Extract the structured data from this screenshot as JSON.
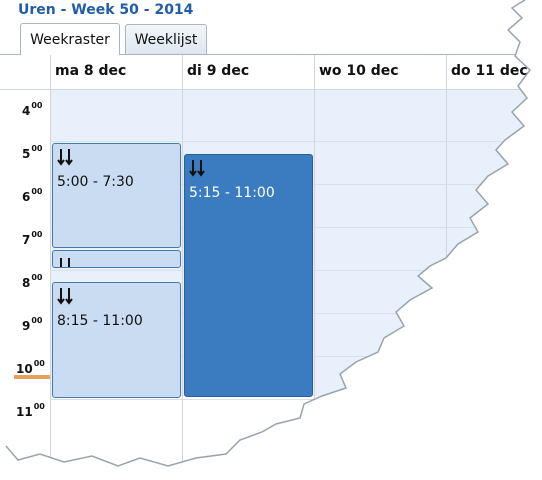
{
  "window": {
    "title": "Uren - Week 50 - 2014"
  },
  "tabs": [
    {
      "label": "Weekraster",
      "active": true
    },
    {
      "label": "Weeklijst",
      "active": false
    }
  ],
  "calendar": {
    "days": [
      {
        "label": "ma 8 dec"
      },
      {
        "label": "di 9 dec"
      },
      {
        "label": "wo 10 dec"
      },
      {
        "label": "do 11 dec"
      }
    ],
    "hours": [
      {
        "h": "4",
        "m": "00"
      },
      {
        "h": "5",
        "m": "00"
      },
      {
        "h": "6",
        "m": "00"
      },
      {
        "h": "7",
        "m": "00"
      },
      {
        "h": "8",
        "m": "00"
      },
      {
        "h": "9",
        "m": "00"
      },
      {
        "h": "10",
        "m": "00"
      },
      {
        "h": "11",
        "m": "00"
      }
    ],
    "events": [
      {
        "day": "ma 8 dec",
        "time": "5:00 - 7:30",
        "icon": "travel-icon"
      },
      {
        "day": "ma 8 dec",
        "time": "",
        "icon": "travel-icon"
      },
      {
        "day": "ma 8 dec",
        "time": "8:15 - 11:00",
        "icon": "travel-icon"
      },
      {
        "day": "di 9 dec",
        "time": "5:15 - 11:00",
        "icon": "travel-icon",
        "selected": true
      }
    ],
    "colors": {
      "title": "#1f5da8",
      "working_band": "#e8f1fb",
      "event_light": "#c9dcf1",
      "event_selected": "#3b7bc0",
      "now_marker": "#e8a15b"
    }
  }
}
